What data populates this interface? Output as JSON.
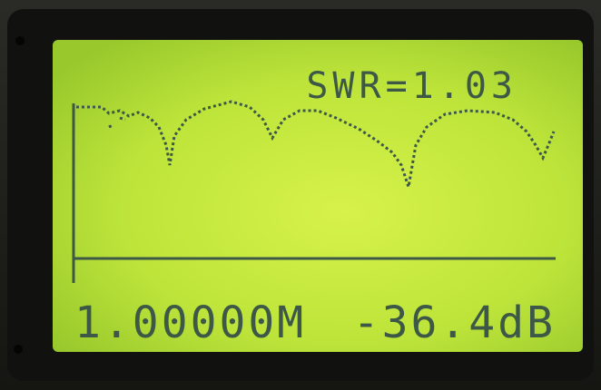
{
  "display": {
    "swr": "SWR=1.03",
    "frequency": "1.00000M",
    "level": "-36.4dB"
  }
}
